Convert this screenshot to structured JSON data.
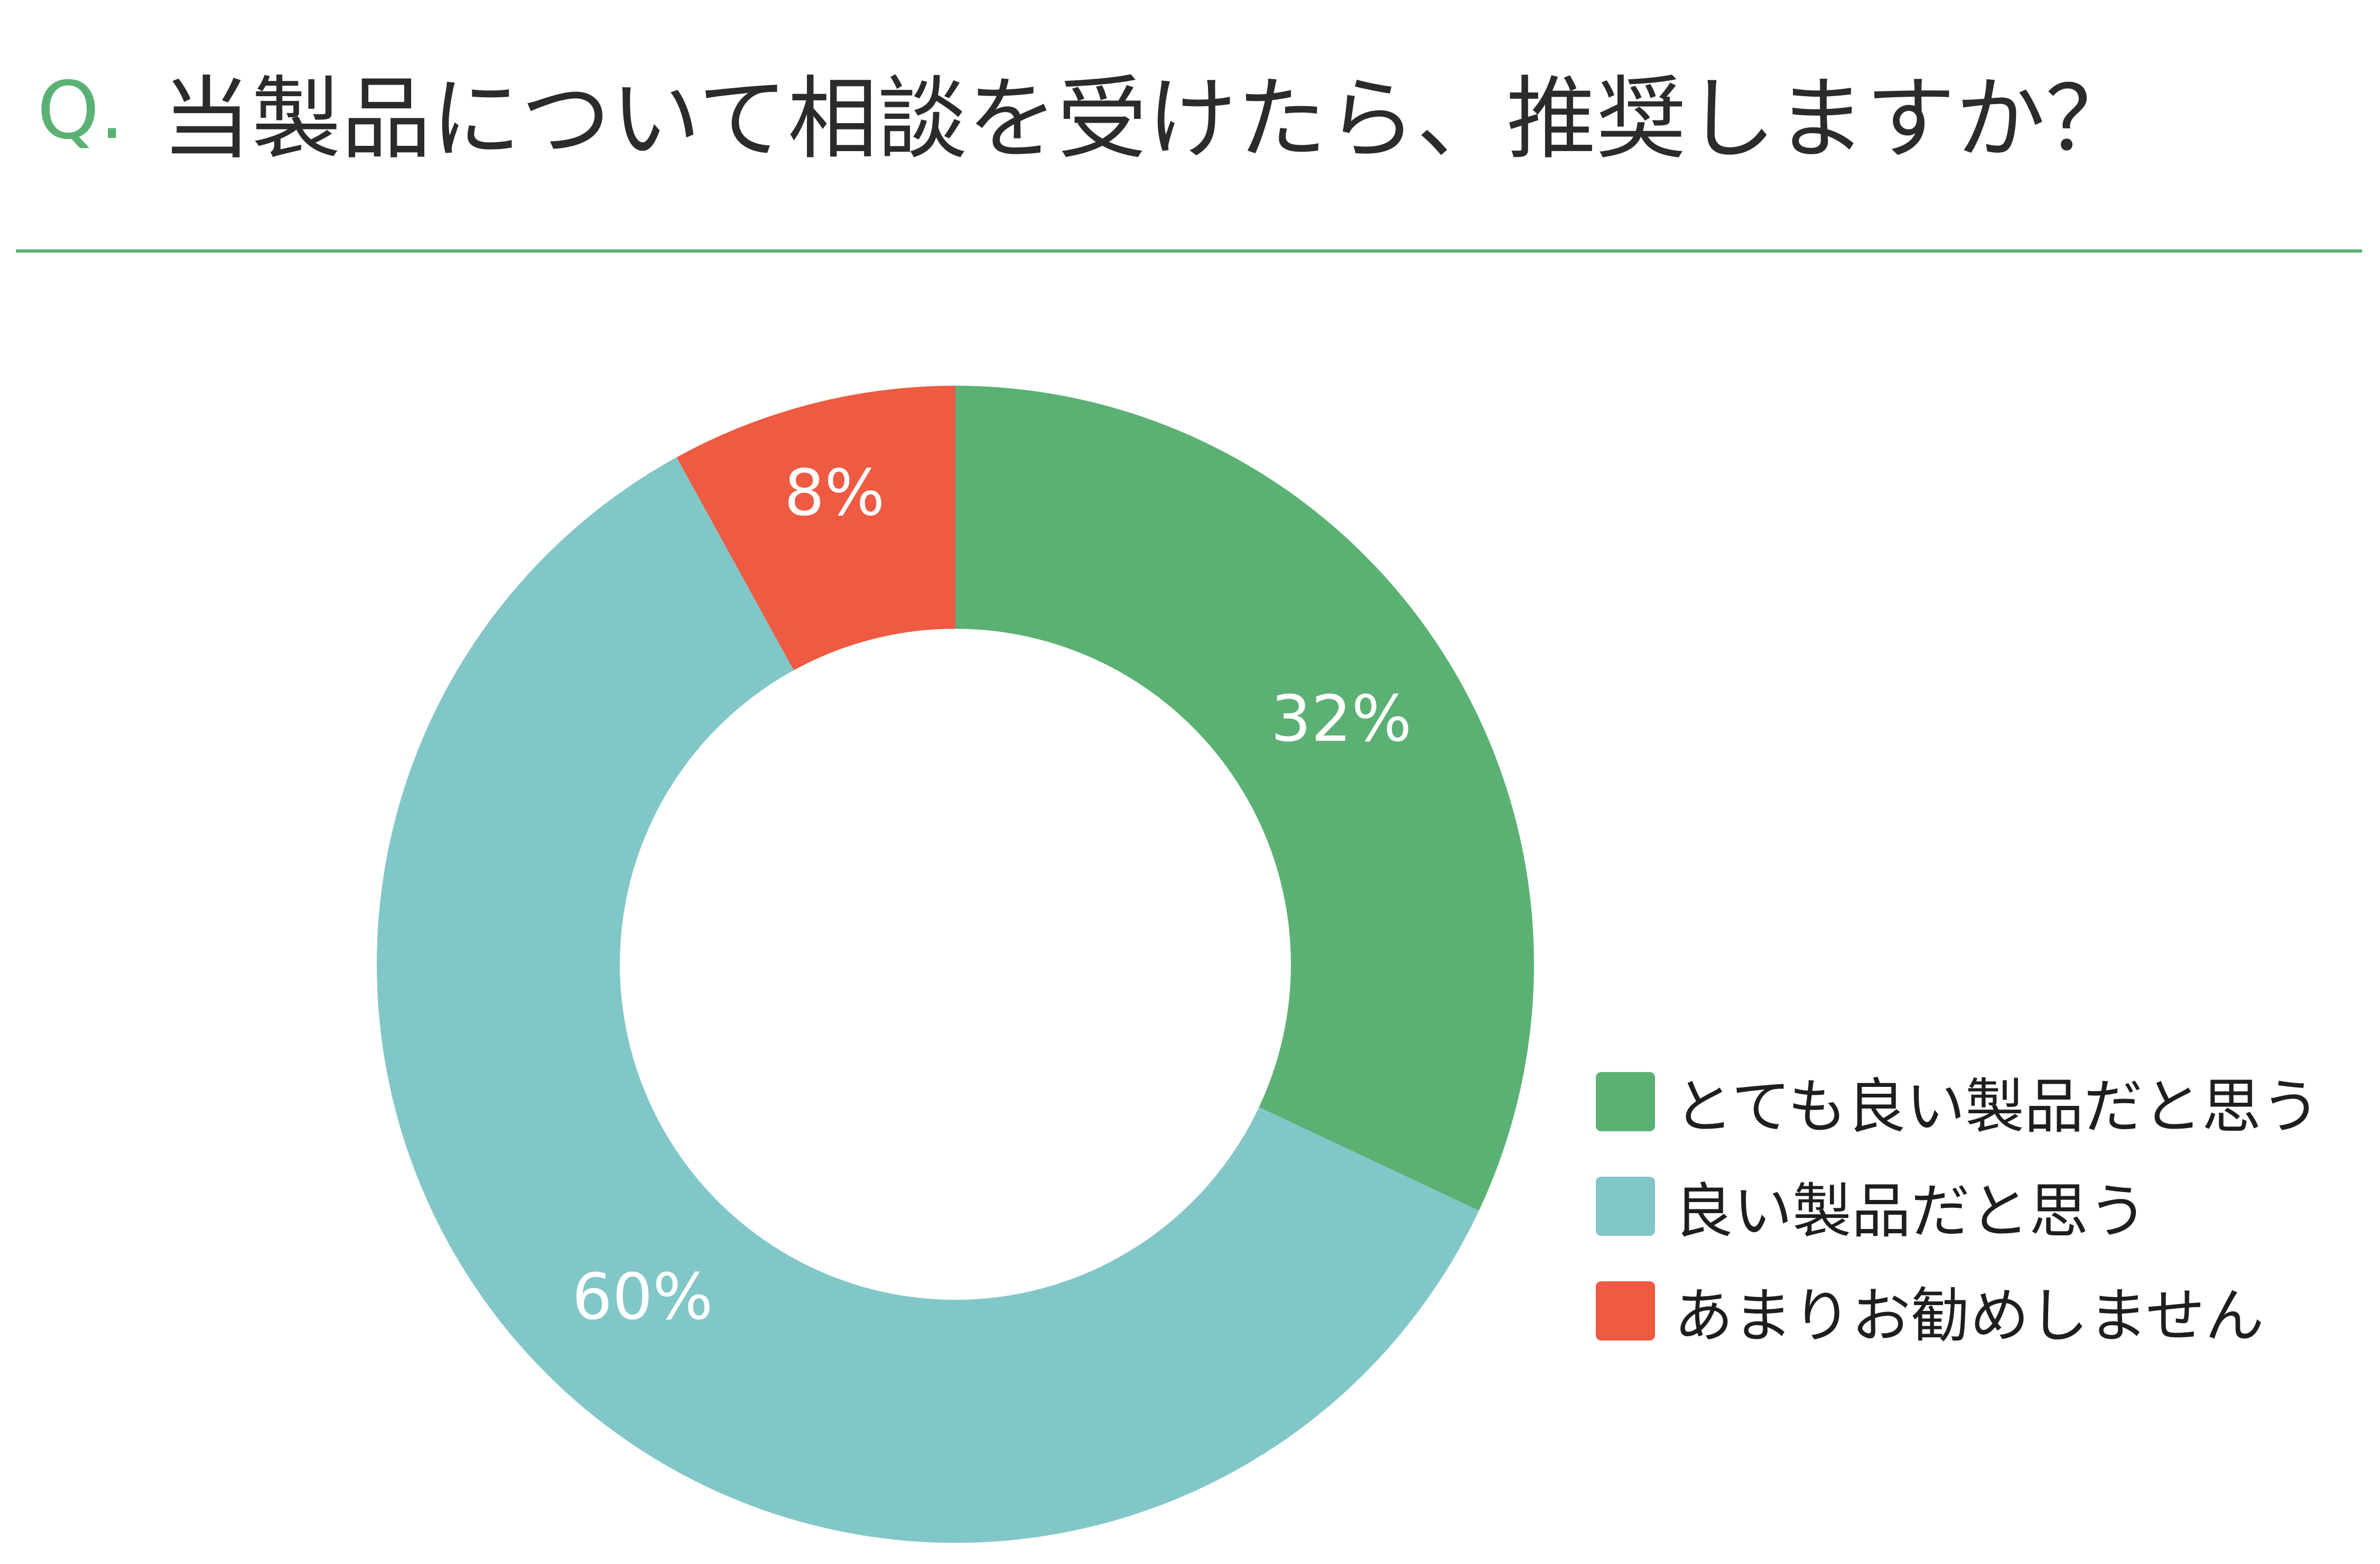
{
  "header": {
    "q_mark": "Q.",
    "question": "当製品について相談を受けたら、推奨しますか？",
    "accent_color": "#5bb174",
    "rule_color": "#5bb174"
  },
  "chart_data": {
    "type": "pie",
    "variant": "donut",
    "title": "",
    "start": "12 o'clock",
    "direction": "clockwise",
    "legend_position": "bottom-right",
    "series": [
      {
        "name": "とても良い製品だと思う",
        "value": 32,
        "label": "32%",
        "color": "#5bb174"
      },
      {
        "name": "良い製品だと思う",
        "value": 60,
        "label": "60%",
        "color": "#82c7c8"
      },
      {
        "name": "あまりお勧めしません",
        "value": 8,
        "label": "8%",
        "color": "#ee5a42"
      }
    ]
  }
}
